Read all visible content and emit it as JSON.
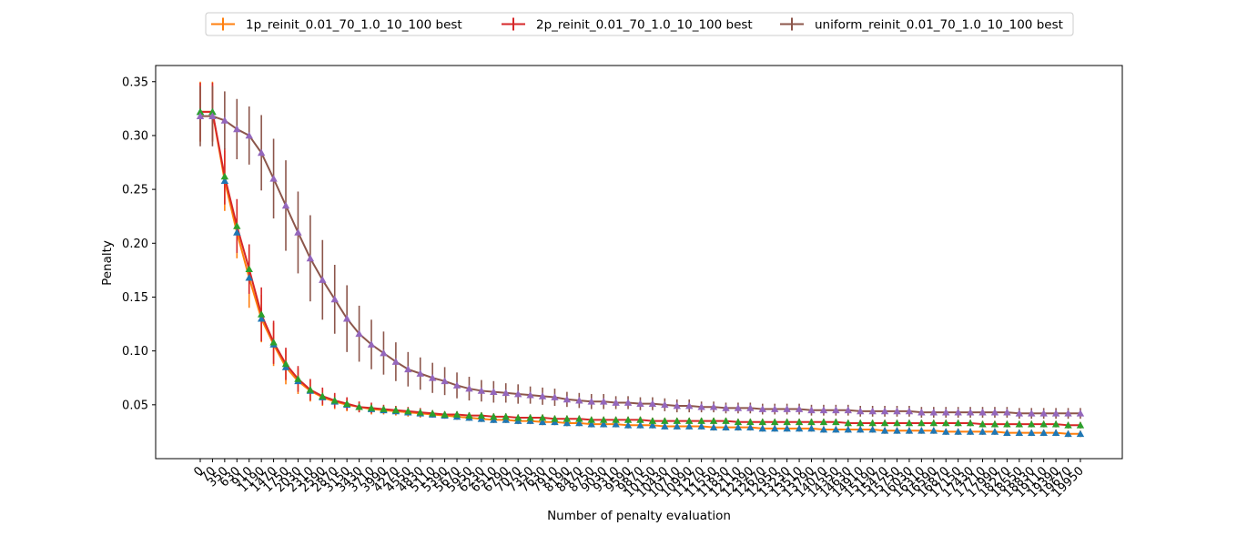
{
  "chart_data": {
    "type": "line",
    "title": "",
    "xlabel": "Number of penalty evaluation",
    "ylabel": "Penalty",
    "ylim": [
      0.0,
      0.365
    ],
    "yticks": [
      0.05,
      0.1,
      0.15,
      0.2,
      0.25,
      0.3,
      0.35
    ],
    "ytick_labels": [
      "0.05",
      "0.10",
      "0.15",
      "0.20",
      "0.25",
      "0.30",
      "0.35"
    ],
    "legend_position": "top-center",
    "grid": false,
    "x": [
      0,
      70,
      350,
      630,
      910,
      1190,
      1470,
      1750,
      2030,
      2310,
      2590,
      2870,
      3150,
      3430,
      3710,
      3990,
      4270,
      4550,
      4830,
      5110,
      5390,
      5670,
      5950,
      6230,
      6510,
      6790,
      7070,
      7350,
      7630,
      7910,
      8190,
      8470,
      8750,
      9030,
      9310,
      9590,
      9870,
      10150,
      10430,
      10710,
      10990,
      11270,
      11550,
      11830,
      12110,
      12390,
      12670,
      12950,
      13230,
      13510,
      13790,
      14070,
      14350,
      14630,
      14910,
      15190,
      15470,
      15750,
      16030,
      16310,
      16590,
      16870,
      17150,
      17430,
      17710,
      17990,
      18270,
      18550,
      18830,
      19110,
      19390,
      19670,
      19950
    ],
    "xtick_labels": [
      "0",
      "70",
      "350",
      "630",
      "910",
      "1190",
      "1470",
      "1750",
      "2030",
      "2310",
      "2590",
      "2870",
      "3150",
      "3430",
      "3710",
      "3990",
      "4270",
      "4550",
      "4830",
      "5110",
      "5390",
      "5670",
      "5950",
      "6230",
      "6510",
      "6790",
      "7070",
      "7350",
      "7630",
      "7910",
      "8190",
      "8470",
      "8750",
      "9030",
      "9310",
      "9590",
      "9870",
      "10150",
      "10430",
      "10710",
      "10990",
      "11270",
      "11550",
      "11830",
      "12110",
      "12390",
      "12670",
      "12950",
      "13230",
      "13510",
      "13790",
      "14070",
      "14350",
      "14630",
      "14910",
      "15190",
      "15470",
      "15750",
      "16030",
      "16310",
      "16590",
      "16870",
      "17150",
      "17430",
      "17710",
      "17990",
      "18270",
      "18550",
      "18830",
      "19110",
      "19390",
      "19670",
      "19950"
    ],
    "series": [
      {
        "name": "1p_reinit_0.01_70_1.0_10_100 best",
        "color": "#ff7f0e",
        "marker_color": "#1f77b4",
        "values": [
          0.322,
          0.322,
          0.258,
          0.21,
          0.168,
          0.13,
          0.106,
          0.085,
          0.072,
          0.063,
          0.057,
          0.053,
          0.05,
          0.048,
          0.046,
          0.045,
          0.044,
          0.043,
          0.042,
          0.041,
          0.04,
          0.039,
          0.038,
          0.037,
          0.036,
          0.036,
          0.035,
          0.035,
          0.034,
          0.034,
          0.033,
          0.033,
          0.032,
          0.032,
          0.032,
          0.031,
          0.031,
          0.031,
          0.03,
          0.03,
          0.03,
          0.03,
          0.029,
          0.029,
          0.029,
          0.029,
          0.028,
          0.028,
          0.028,
          0.028,
          0.028,
          0.027,
          0.027,
          0.027,
          0.027,
          0.027,
          0.026,
          0.026,
          0.026,
          0.026,
          0.026,
          0.025,
          0.025,
          0.025,
          0.025,
          0.025,
          0.024,
          0.024,
          0.024,
          0.024,
          0.024,
          0.023,
          0.023
        ],
        "errors": [
          0.028,
          0.028,
          0.028,
          0.024,
          0.028,
          0.022,
          0.02,
          0.016,
          0.012,
          0.01,
          0.008,
          0.007,
          0.006,
          0.005,
          0.005,
          0.004,
          0.004,
          0.004,
          0.004,
          0.003,
          0.003,
          0.003,
          0.003,
          0.003,
          0.003,
          0.003,
          0.003,
          0.003,
          0.003,
          0.003,
          0.003,
          0.003,
          0.003,
          0.003,
          0.003,
          0.003,
          0.003,
          0.003,
          0.003,
          0.003,
          0.003,
          0.003,
          0.003,
          0.003,
          0.003,
          0.003,
          0.003,
          0.003,
          0.003,
          0.003,
          0.003,
          0.003,
          0.003,
          0.003,
          0.003,
          0.003,
          0.003,
          0.003,
          0.003,
          0.003,
          0.003,
          0.003,
          0.003,
          0.003,
          0.003,
          0.003,
          0.003,
          0.003,
          0.003,
          0.003,
          0.003,
          0.003,
          0.003
        ]
      },
      {
        "name": "2p_reinit_0.01_70_1.0_10_100 best",
        "color": "#d62728",
        "marker_color": "#2ca02c",
        "values": [
          0.322,
          0.322,
          0.262,
          0.216,
          0.176,
          0.134,
          0.108,
          0.088,
          0.074,
          0.064,
          0.058,
          0.054,
          0.051,
          0.048,
          0.047,
          0.046,
          0.045,
          0.044,
          0.043,
          0.042,
          0.041,
          0.041,
          0.04,
          0.04,
          0.039,
          0.039,
          0.038,
          0.038,
          0.038,
          0.037,
          0.037,
          0.037,
          0.036,
          0.036,
          0.036,
          0.036,
          0.036,
          0.035,
          0.035,
          0.035,
          0.035,
          0.035,
          0.035,
          0.035,
          0.034,
          0.034,
          0.034,
          0.034,
          0.034,
          0.034,
          0.034,
          0.034,
          0.034,
          0.033,
          0.033,
          0.033,
          0.033,
          0.033,
          0.033,
          0.033,
          0.033,
          0.033,
          0.033,
          0.033,
          0.032,
          0.032,
          0.032,
          0.032,
          0.032,
          0.032,
          0.032,
          0.031,
          0.031
        ],
        "errors": [
          0.027,
          0.027,
          0.026,
          0.025,
          0.023,
          0.025,
          0.02,
          0.015,
          0.012,
          0.01,
          0.008,
          0.007,
          0.006,
          0.005,
          0.005,
          0.004,
          0.004,
          0.004,
          0.004,
          0.003,
          0.003,
          0.003,
          0.003,
          0.003,
          0.003,
          0.003,
          0.003,
          0.003,
          0.003,
          0.003,
          0.003,
          0.003,
          0.003,
          0.003,
          0.003,
          0.003,
          0.003,
          0.003,
          0.003,
          0.003,
          0.003,
          0.003,
          0.003,
          0.003,
          0.003,
          0.003,
          0.003,
          0.003,
          0.003,
          0.003,
          0.003,
          0.003,
          0.003,
          0.003,
          0.003,
          0.003,
          0.003,
          0.003,
          0.003,
          0.003,
          0.003,
          0.003,
          0.003,
          0.003,
          0.003,
          0.003,
          0.003,
          0.003,
          0.003,
          0.003,
          0.003,
          0.003,
          0.003
        ]
      },
      {
        "name": "uniform_reinit_0.01_70_1.0_10_100 best",
        "color": "#8c564b",
        "marker_color": "#9467bd",
        "values": [
          0.318,
          0.318,
          0.314,
          0.306,
          0.3,
          0.284,
          0.26,
          0.235,
          0.21,
          0.186,
          0.166,
          0.148,
          0.13,
          0.116,
          0.106,
          0.098,
          0.09,
          0.083,
          0.079,
          0.075,
          0.072,
          0.068,
          0.065,
          0.063,
          0.062,
          0.061,
          0.06,
          0.059,
          0.058,
          0.057,
          0.055,
          0.054,
          0.053,
          0.053,
          0.052,
          0.052,
          0.051,
          0.051,
          0.05,
          0.049,
          0.049,
          0.048,
          0.048,
          0.047,
          0.047,
          0.047,
          0.046,
          0.046,
          0.046,
          0.046,
          0.045,
          0.045,
          0.045,
          0.045,
          0.044,
          0.044,
          0.044,
          0.044,
          0.044,
          0.043,
          0.043,
          0.043,
          0.043,
          0.043,
          0.043,
          0.043,
          0.043,
          0.042,
          0.042,
          0.042,
          0.042,
          0.042,
          0.042
        ],
        "errors": [
          0.028,
          0.028,
          0.027,
          0.028,
          0.027,
          0.035,
          0.037,
          0.042,
          0.038,
          0.04,
          0.037,
          0.032,
          0.031,
          0.026,
          0.023,
          0.02,
          0.018,
          0.016,
          0.015,
          0.014,
          0.013,
          0.012,
          0.011,
          0.01,
          0.01,
          0.009,
          0.009,
          0.008,
          0.008,
          0.008,
          0.007,
          0.007,
          0.007,
          0.007,
          0.006,
          0.006,
          0.006,
          0.006,
          0.006,
          0.006,
          0.006,
          0.005,
          0.005,
          0.005,
          0.005,
          0.005,
          0.005,
          0.005,
          0.005,
          0.005,
          0.005,
          0.005,
          0.005,
          0.005,
          0.005,
          0.005,
          0.005,
          0.005,
          0.005,
          0.005,
          0.005,
          0.005,
          0.005,
          0.005,
          0.005,
          0.005,
          0.005,
          0.005,
          0.005,
          0.005,
          0.005,
          0.005,
          0.005
        ]
      }
    ]
  }
}
